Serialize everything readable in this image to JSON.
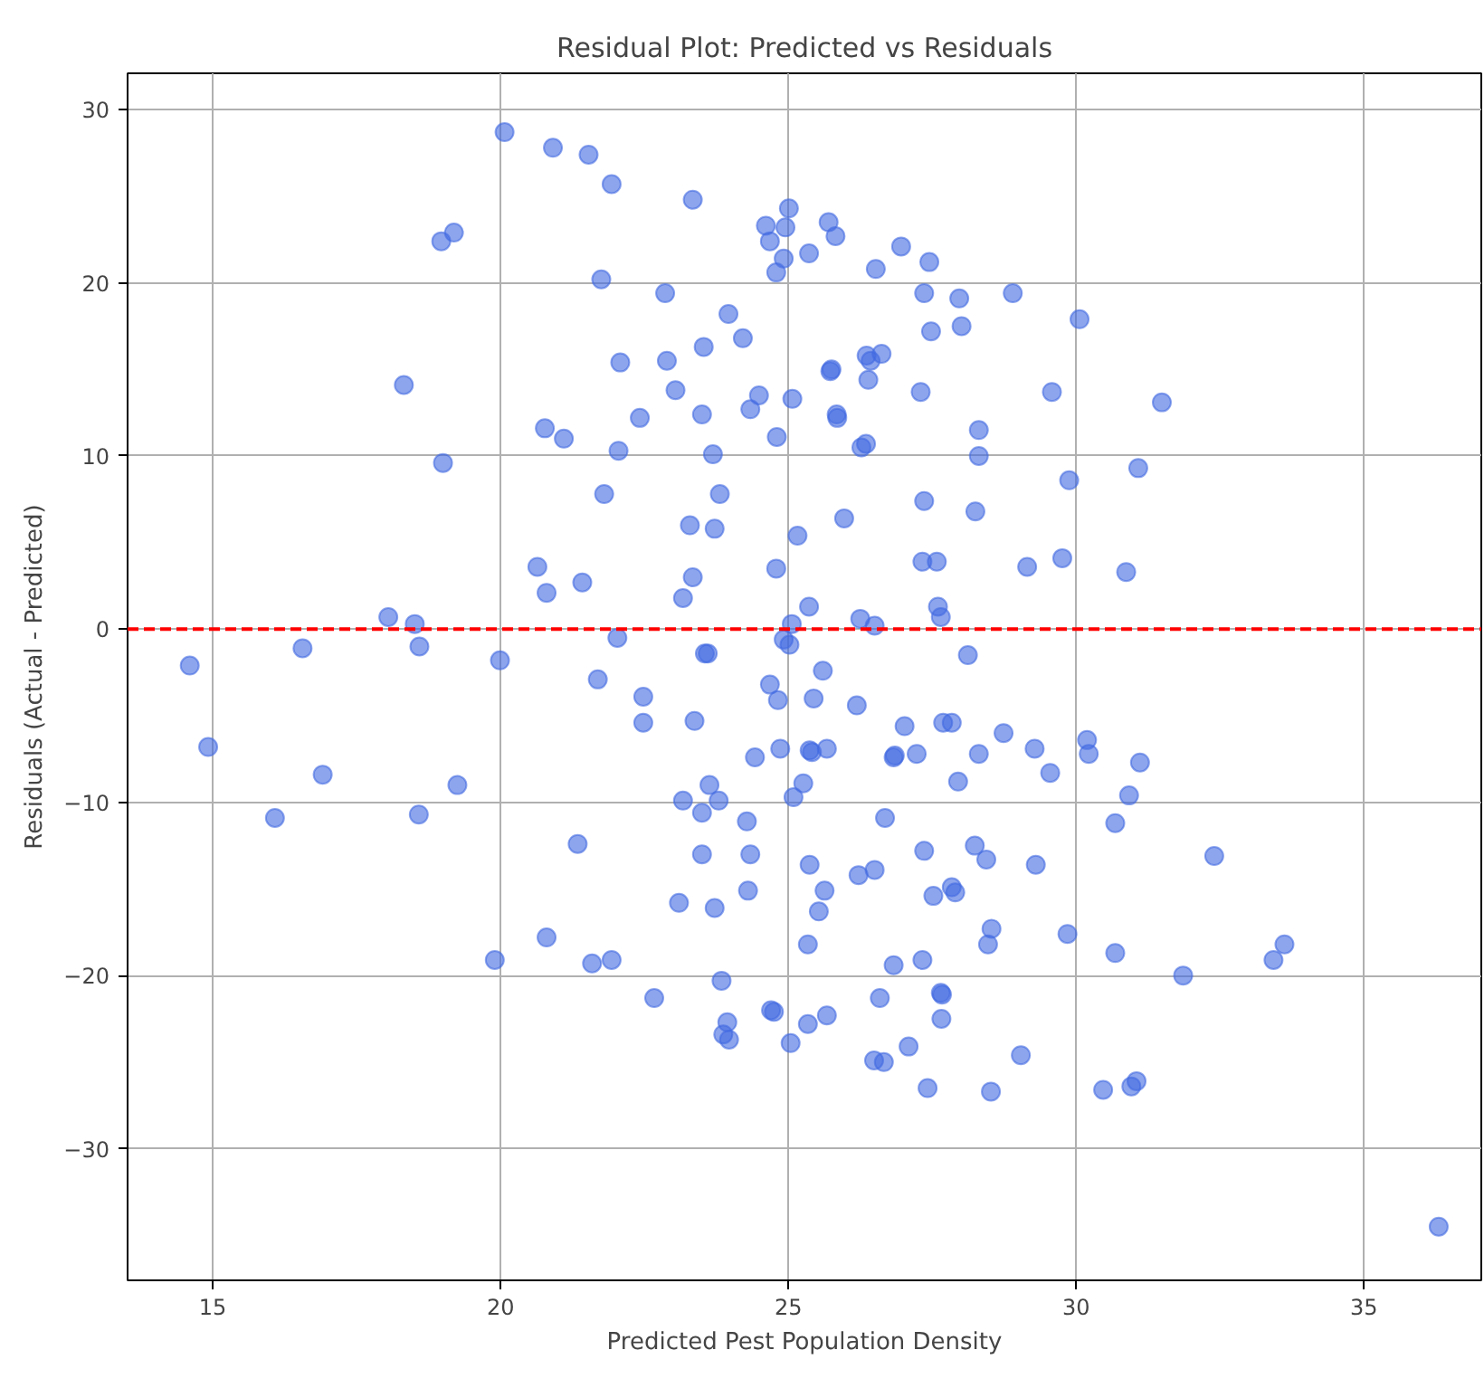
{
  "chart_data": {
    "type": "scatter",
    "title": "Residual Plot: Predicted vs Residuals",
    "xlabel": "Predicted Pest Population Density",
    "ylabel": "Residuals (Actual - Predicted)",
    "x": [
      20.07,
      20.91,
      21.53,
      21.93,
      23.34,
      24.61,
      24.68,
      25.01,
      24.95,
      24.92,
      24.79,
      25.36,
      18.97,
      19.19,
      21.75,
      22.86,
      23.96,
      24.21,
      23.53,
      22.89,
      22.08,
      23.04,
      24.49,
      24.34,
      25.07,
      18.32,
      22.42,
      23.5,
      20.77,
      21.1,
      22.05,
      23.69,
      24.8,
      19.0,
      21.8,
      23.81,
      23.29,
      23.72,
      25.16,
      20.64,
      20.8,
      21.42,
      23.34,
      23.17,
      24.79,
      25.36,
      18.05,
      18.51,
      25.06,
      16.56,
      18.59,
      14.6,
      19.99,
      22.03,
      23.55,
      23.6,
      24.92,
      25.02,
      21.69,
      22.48,
      22.48,
      23.37,
      24.68,
      24.82,
      14.92,
      16.91,
      19.25,
      16.08,
      18.58,
      21.34,
      23.17,
      23.63,
      23.5,
      23.79,
      24.42,
      24.86,
      25.26,
      25.09,
      24.28,
      23.5,
      24.34,
      24.3,
      23.1,
      23.72,
      20.8,
      19.9,
      21.59,
      21.93,
      23.84,
      22.67,
      23.94,
      23.87,
      23.97,
      24.7,
      24.75,
      25.04,
      25.34,
      25.34,
      25.37,
      25.37,
      25.44,
      25.7,
      25.82,
      26.52,
      26.96,
      27.45,
      27.36,
      27.97,
      28.9,
      30.06,
      27.48,
      28.01,
      26.36,
      26.43,
      26.62,
      26.39,
      25.73,
      25.75,
      27.3,
      29.58,
      31.49,
      25.84,
      25.85,
      26.27,
      26.35,
      28.31,
      28.31,
      29.88,
      31.08,
      27.36,
      28.25,
      25.97,
      27.33,
      27.58,
      29.15,
      29.76,
      30.87,
      26.25,
      26.5,
      27.6,
      27.65,
      28.12,
      25.6,
      26.19,
      27.02,
      27.69,
      27.84,
      28.74,
      25.41,
      25.67,
      26.83,
      26.85,
      27.23,
      28.31,
      29.28,
      29.55,
      30.19,
      30.22,
      31.11,
      27.95,
      30.92,
      30.68,
      26.68,
      27.36,
      28.24,
      28.44,
      29.3,
      32.4,
      26.22,
      26.5,
      25.63,
      25.53,
      27.52,
      27.84,
      27.9,
      28.53,
      28.47,
      29.85,
      30.68,
      26.83,
      27.33,
      31.86,
      33.43,
      33.62,
      26.59,
      27.65,
      27.67,
      27.66,
      25.67,
      26.49,
      26.66,
      27.09,
      29.04,
      27.42,
      28.52,
      30.47,
      30.96,
      31.05,
      36.3
    ],
    "values": [
      28.7,
      27.8,
      27.4,
      25.7,
      24.8,
      23.3,
      22.4,
      24.3,
      23.2,
      21.4,
      20.6,
      21.7,
      22.4,
      22.9,
      20.2,
      19.4,
      18.2,
      16.8,
      16.3,
      15.5,
      15.4,
      13.8,
      13.5,
      12.7,
      13.3,
      14.1,
      12.2,
      12.4,
      11.6,
      11.0,
      10.3,
      10.1,
      11.1,
      9.6,
      7.8,
      7.8,
      6.0,
      5.8,
      5.4,
      3.6,
      2.1,
      2.7,
      3.0,
      1.8,
      3.5,
      1.3,
      0.7,
      0.3,
      0.3,
      -1.1,
      -1.0,
      -2.1,
      -1.8,
      -0.5,
      -1.4,
      -1.4,
      -0.6,
      -0.9,
      -2.9,
      -3.9,
      -5.4,
      -5.3,
      -3.2,
      -4.1,
      -6.8,
      -8.4,
      -9.0,
      -10.9,
      -10.7,
      -12.4,
      -9.9,
      -9.0,
      -10.6,
      -9.9,
      -7.4,
      -6.9,
      -8.9,
      -9.7,
      -11.1,
      -13.0,
      -13.0,
      -15.1,
      -15.8,
      -16.1,
      -17.8,
      -19.1,
      -19.3,
      -19.1,
      -20.3,
      -21.3,
      -22.7,
      -23.4,
      -23.7,
      -22.0,
      -22.1,
      -23.9,
      -22.8,
      -18.2,
      -13.6,
      -7.0,
      -4.0,
      23.5,
      22.7,
      20.8,
      22.1,
      21.2,
      19.4,
      19.1,
      19.4,
      17.9,
      17.2,
      17.5,
      15.8,
      15.5,
      15.9,
      14.4,
      14.9,
      15.0,
      13.7,
      13.7,
      13.1,
      12.4,
      12.2,
      10.5,
      10.7,
      11.5,
      10.0,
      8.6,
      9.3,
      7.4,
      6.8,
      6.4,
      3.9,
      3.9,
      3.6,
      4.1,
      3.3,
      0.6,
      0.2,
      1.3,
      0.7,
      -1.5,
      -2.4,
      -4.4,
      -5.6,
      -5.4,
      -5.4,
      -6.0,
      -7.1,
      -6.9,
      -7.4,
      -7.3,
      -7.2,
      -7.2,
      -6.9,
      -8.3,
      -6.4,
      -7.2,
      -7.7,
      -8.8,
      -9.6,
      -11.2,
      -10.9,
      -12.8,
      -12.5,
      -13.3,
      -13.6,
      -13.1,
      -14.2,
      -13.9,
      -15.1,
      -16.3,
      -15.4,
      -14.9,
      -15.2,
      -17.3,
      -18.2,
      -17.6,
      -18.7,
      -19.4,
      -19.1,
      -20.0,
      -19.1,
      -18.2,
      -21.3,
      -21.0,
      -21.1,
      -22.5,
      -22.3,
      -24.9,
      -25.0,
      -24.1,
      -24.6,
      -26.5,
      -26.7,
      -26.6,
      -26.4,
      -26.1,
      -34.5
    ],
    "color": "#4169e1",
    "marker": "circle",
    "grid": true,
    "xlim": [
      13.52,
      37.04
    ],
    "ylim": [
      -37.6,
      32.1
    ],
    "xticks": [
      15,
      20,
      25,
      30,
      35
    ],
    "yticks": [
      {
        "value": -30,
        "label": "−30"
      },
      {
        "value": -20,
        "label": "−20"
      },
      {
        "value": -10,
        "label": "−10"
      },
      0,
      10,
      20,
      30
    ],
    "ref_lines": [
      {
        "axis": "y",
        "value": 0,
        "label": null,
        "color": "#ff0000",
        "line_style": "dashed"
      }
    ]
  }
}
